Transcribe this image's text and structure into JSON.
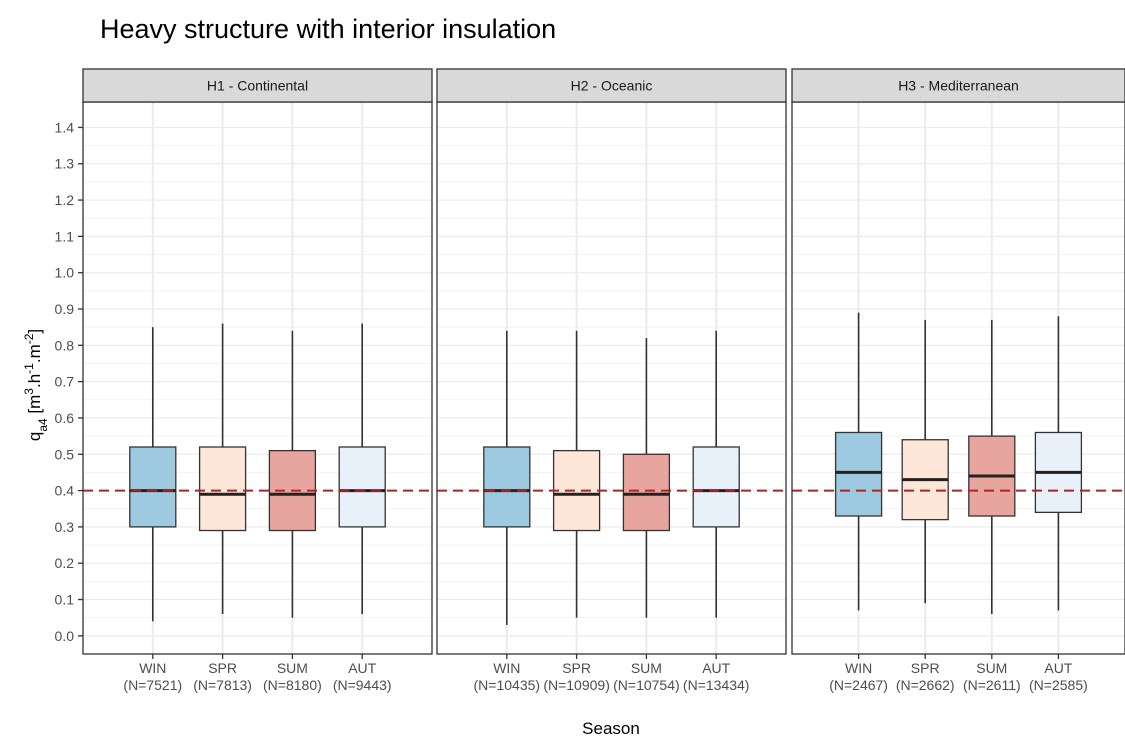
{
  "title": "Heavy structure with interior insulation",
  "chart_data": {
    "type": "boxplot",
    "xlabel": "Season",
    "ylabel_parts": {
      "base": "q",
      "sub": "a4",
      "unit_open": " [m",
      "sup1": "3",
      "mid1": ".h",
      "sup2": "-1",
      "mid2": ".m",
      "sup3": "-2",
      "unit_close": "]"
    },
    "ylim": [
      -0.05,
      1.47
    ],
    "yticks": [
      0.0,
      0.1,
      0.2,
      0.3,
      0.4,
      0.5,
      0.6,
      0.7,
      0.8,
      0.9,
      1.0,
      1.1,
      1.2,
      1.3,
      1.4
    ],
    "ytick_labels": [
      "0.0",
      "0.1",
      "0.2",
      "0.3",
      "0.4",
      "0.5",
      "0.6",
      "0.7",
      "0.8",
      "0.9",
      "1.0",
      "1.1",
      "1.2",
      "1.3",
      "1.4"
    ],
    "grid": true,
    "reference_line": {
      "y": 0.4,
      "style": "dashed",
      "color": "#b22222"
    },
    "season_colors": {
      "WIN": "#9ecae1",
      "SPR": "#fee6d8",
      "SUM": "#e8a5a0",
      "AUT": "#e8f1f9"
    },
    "panels": [
      {
        "label": "H1 - Continental",
        "categories": [
          "WIN",
          "SPR",
          "SUM",
          "AUT"
        ],
        "counts": [
          "(N=7521)",
          "(N=7813)",
          "(N=8180)",
          "(N=9443)"
        ],
        "boxes": [
          {
            "min": 0.04,
            "q1": 0.3,
            "median": 0.4,
            "q3": 0.52,
            "max": 0.85
          },
          {
            "min": 0.06,
            "q1": 0.29,
            "median": 0.39,
            "q3": 0.52,
            "max": 0.86
          },
          {
            "min": 0.05,
            "q1": 0.29,
            "median": 0.39,
            "q3": 0.51,
            "max": 0.84
          },
          {
            "min": 0.06,
            "q1": 0.3,
            "median": 0.4,
            "q3": 0.52,
            "max": 0.86
          }
        ]
      },
      {
        "label": "H2 - Oceanic",
        "categories": [
          "WIN",
          "SPR",
          "SUM",
          "AUT"
        ],
        "counts": [
          "(N=10435)",
          "(N=10909)",
          "(N=10754)",
          "(N=13434)"
        ],
        "boxes": [
          {
            "min": 0.03,
            "q1": 0.3,
            "median": 0.4,
            "q3": 0.52,
            "max": 0.84
          },
          {
            "min": 0.05,
            "q1": 0.29,
            "median": 0.39,
            "q3": 0.51,
            "max": 0.84
          },
          {
            "min": 0.05,
            "q1": 0.29,
            "median": 0.39,
            "q3": 0.5,
            "max": 0.82
          },
          {
            "min": 0.05,
            "q1": 0.3,
            "median": 0.4,
            "q3": 0.52,
            "max": 0.84
          }
        ]
      },
      {
        "label": "H3 - Mediterranean",
        "categories": [
          "WIN",
          "SPR",
          "SUM",
          "AUT"
        ],
        "counts": [
          "(N=2467)",
          "(N=2662)",
          "(N=2611)",
          "(N=2585)"
        ],
        "boxes": [
          {
            "min": 0.07,
            "q1": 0.33,
            "median": 0.45,
            "q3": 0.56,
            "max": 0.89
          },
          {
            "min": 0.09,
            "q1": 0.32,
            "median": 0.43,
            "q3": 0.54,
            "max": 0.87
          },
          {
            "min": 0.06,
            "q1": 0.33,
            "median": 0.44,
            "q3": 0.55,
            "max": 0.87
          },
          {
            "min": 0.07,
            "q1": 0.34,
            "median": 0.45,
            "q3": 0.56,
            "max": 0.88
          }
        ]
      }
    ]
  }
}
